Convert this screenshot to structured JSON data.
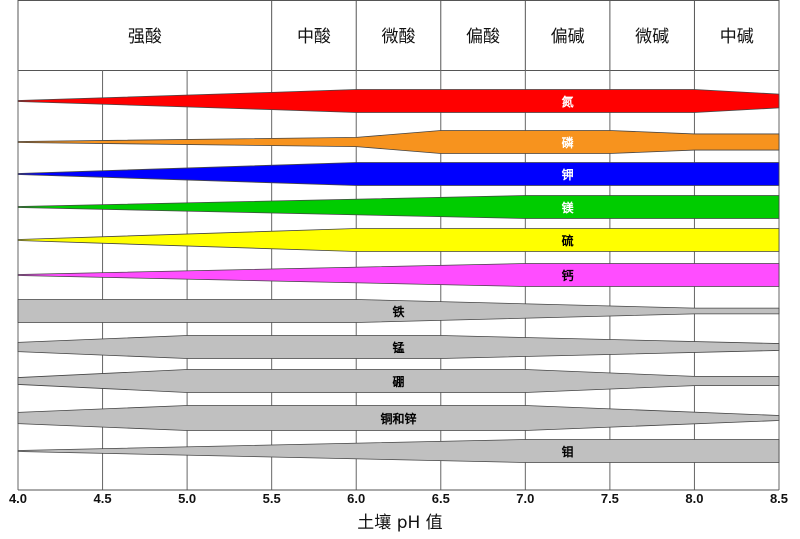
{
  "chart_data": {
    "type": "area",
    "xlabel": "土壤 pH 值",
    "xlim": [
      4.0,
      8.5
    ],
    "xticks": [
      "4.0",
      "4.5",
      "5.0",
      "5.5",
      "6.0",
      "6.5",
      "7.0",
      "7.5",
      "8.0",
      "8.5"
    ],
    "grid": true,
    "header_zones": [
      {
        "label": "强酸",
        "from": 4.0,
        "to": 5.5
      },
      {
        "label": "中酸",
        "from": 5.5,
        "to": 6.0
      },
      {
        "label": "微酸",
        "from": 6.0,
        "to": 6.5
      },
      {
        "label": "偏酸",
        "from": 6.5,
        "to": 7.0
      },
      {
        "label": "偏碱",
        "from": 7.0,
        "to": 7.5
      },
      {
        "label": "微碱",
        "from": 7.5,
        "to": 8.0
      },
      {
        "label": "中碱",
        "from": 8.0,
        "to": 8.5
      }
    ],
    "series": [
      {
        "name": "氮",
        "color": "#ff0000",
        "text_color": "#ffffff",
        "label_at": 7.25,
        "points": [
          [
            4.0,
            0
          ],
          [
            5.5,
            0.75
          ],
          [
            6.0,
            1
          ],
          [
            8.0,
            1
          ],
          [
            8.5,
            0.6
          ]
        ]
      },
      {
        "name": "磷",
        "color": "#f7931e",
        "text_color": "#ffffff",
        "label_at": 7.25,
        "points": [
          [
            4.0,
            0
          ],
          [
            6.0,
            0.4
          ],
          [
            6.5,
            1
          ],
          [
            7.5,
            1
          ],
          [
            8.0,
            0.7
          ],
          [
            8.5,
            0.7
          ]
        ]
      },
      {
        "name": "钾",
        "color": "#0000ff",
        "text_color": "#ffffff",
        "label_at": 7.25,
        "points": [
          [
            4.0,
            0
          ],
          [
            6.0,
            1
          ],
          [
            8.5,
            1
          ]
        ]
      },
      {
        "name": "镁",
        "color": "#00cc00",
        "text_color": "#ffffff",
        "label_at": 7.25,
        "points": [
          [
            4.0,
            0
          ],
          [
            7.0,
            1
          ],
          [
            8.5,
            1
          ]
        ]
      },
      {
        "name": "硫",
        "color": "#ffff00",
        "text_color": "#000000",
        "label_at": 7.25,
        "points": [
          [
            4.0,
            0
          ],
          [
            6.0,
            1
          ],
          [
            8.5,
            1
          ]
        ]
      },
      {
        "name": "钙",
        "color": "#ff4dff",
        "text_color": "#000000",
        "label_at": 7.25,
        "points": [
          [
            4.0,
            0
          ],
          [
            7.0,
            1
          ],
          [
            8.5,
            1
          ]
        ]
      },
      {
        "name": "铁",
        "color": "#c0c0c0",
        "text_color": "#000000",
        "label_at": 6.25,
        "points": [
          [
            4.0,
            1
          ],
          [
            6.0,
            1
          ],
          [
            8.0,
            0.25
          ],
          [
            8.5,
            0.25
          ]
        ]
      },
      {
        "name": "锰",
        "color": "#c0c0c0",
        "text_color": "#000000",
        "label_at": 6.25,
        "points": [
          [
            4.0,
            0.4
          ],
          [
            5.0,
            1
          ],
          [
            6.5,
            1
          ],
          [
            8.5,
            0.3
          ]
        ]
      },
      {
        "name": "硼",
        "color": "#c0c0c0",
        "text_color": "#000000",
        "label_at": 6.25,
        "points": [
          [
            4.0,
            0.3
          ],
          [
            5.0,
            1
          ],
          [
            7.0,
            1
          ],
          [
            8.0,
            0.4
          ],
          [
            8.5,
            0.4
          ]
        ]
      },
      {
        "name": "铜和锌",
        "color": "#c0c0c0",
        "text_color": "#000000",
        "label_at": 6.25,
        "points": [
          [
            4.0,
            0.45
          ],
          [
            5.0,
            1
          ],
          [
            7.0,
            1
          ],
          [
            8.5,
            0.2
          ]
        ]
      },
      {
        "name": "钼",
        "color": "#c0c0c0",
        "text_color": "#000000",
        "label_at": 7.25,
        "points": [
          [
            4.0,
            0
          ],
          [
            7.0,
            1
          ],
          [
            8.5,
            1
          ]
        ]
      }
    ]
  }
}
